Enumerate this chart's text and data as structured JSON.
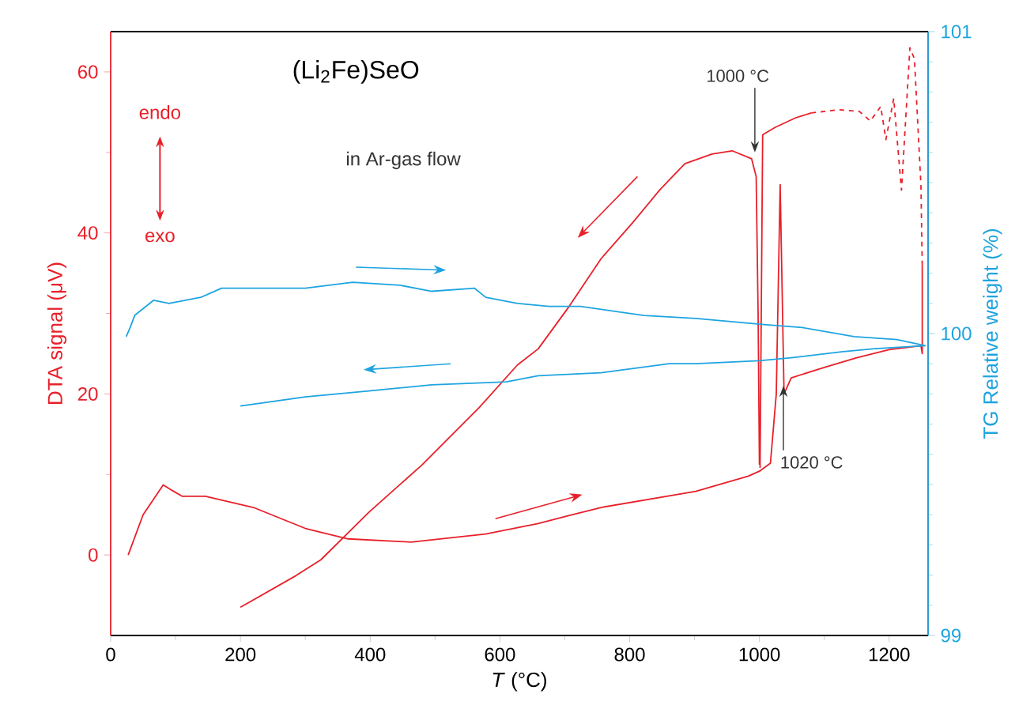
{
  "chart_data": {
    "type": "line",
    "title": "(Li$_{2}$Fe)SeO",
    "xlabel": "*T* (°C)",
    "ylabel": "DTA signal (μV)",
    "y2label": "TG Relative weight (%)",
    "xlim": [
      0,
      1260
    ],
    "ylim": [
      -10,
      65
    ],
    "y2lim": [
      99,
      101
    ],
    "xticks": [
      0,
      200,
      400,
      600,
      800,
      1000,
      1200
    ],
    "yticks": [
      0,
      20,
      40,
      60
    ],
    "y2ticks": [
      99,
      100,
      101
    ],
    "annotations": [
      "in Ar-gas flow",
      "endo",
      "exo",
      {
        "text": "1000 °C",
        "x": 993,
        "y": 50
      },
      {
        "text": "1020 °C",
        "x": 1037,
        "y": 21
      }
    ],
    "series": [
      {
        "color": "#e8202a",
        "x": [
          27,
          50,
          81,
          95,
          110,
          146,
          220,
          300,
          366,
          463,
          578,
          659,
          707,
          756,
          902,
          983,
          1000,
          1017,
          1026,
          1032,
          1038,
          1049,
          1100,
          1150,
          1200,
          1249,
          1251,
          1251
        ],
        "values": [
          0,
          5,
          8.7,
          8,
          7.3,
          7.3,
          5.9,
          3.3,
          2,
          1.6,
          2.6,
          3.9,
          4.9,
          5.9,
          7.9,
          9.8,
          10.4,
          11.4,
          20,
          46,
          20,
          22,
          23.3,
          24.5,
          25.5,
          26,
          25,
          36
        ]
      },
      {
        "color": "#e8202a",
        "x": [
          1001,
          1005,
          1024,
          1056,
          1080
        ],
        "values": [
          10.8,
          52.2,
          53.1,
          54.3,
          54.9
        ]
      },
      {
        "color": "#e8202a",
        "line_style": "dashed",
        "x": [
          1080,
          1122,
          1154,
          1171,
          1187,
          1195,
          1207,
          1219,
          1232,
          1239,
          1249,
          1251
        ],
        "values": [
          54.9,
          55.3,
          55.1,
          53.9,
          55.7,
          51.6,
          56.7,
          45.3,
          63,
          61.6,
          45.9,
          36
        ]
      },
      {
        "color": "#e8202a",
        "x": [
          1000,
          998,
          995,
          988,
          958,
          927,
          885,
          846,
          805,
          756,
          707,
          659,
          627,
          568,
          480,
          398,
          324,
          285,
          200
        ],
        "values": [
          11.2,
          30,
          47,
          49.2,
          50.2,
          49.8,
          48.6,
          45.3,
          41.3,
          36.8,
          30.9,
          25.6,
          23.6,
          18.3,
          11.2,
          5.3,
          -0.6,
          -2.6,
          -6.5
        ]
      },
      {
        "color": "#1ea4e0",
        "axis": "y2",
        "x": [
          24,
          30,
          37,
          66,
          90,
          139,
          171,
          220,
          300,
          373,
          446,
          495,
          561,
          578,
          627,
          676,
          724,
          822,
          902,
          1007,
          1066,
          1146,
          1212,
          1256
        ],
        "values": [
          99.99,
          100.02,
          100.06,
          100.11,
          100.1,
          100.12,
          100.15,
          100.15,
          100.15,
          100.17,
          100.16,
          100.14,
          100.15,
          100.12,
          100.1,
          100.09,
          100.09,
          100.06,
          100.05,
          100.03,
          100.02,
          99.99,
          99.98,
          99.96
        ]
      },
      {
        "color": "#1ea4e0",
        "axis": "y2",
        "x": [
          1256,
          1178,
          1129,
          1049,
          1000,
          902,
          861,
          756,
          659,
          610,
          495,
          398,
          300,
          200
        ],
        "values": [
          99.96,
          99.95,
          99.94,
          99.92,
          99.91,
          99.9,
          99.9,
          99.87,
          99.86,
          99.84,
          99.83,
          99.81,
          99.79,
          99.76
        ]
      }
    ]
  }
}
